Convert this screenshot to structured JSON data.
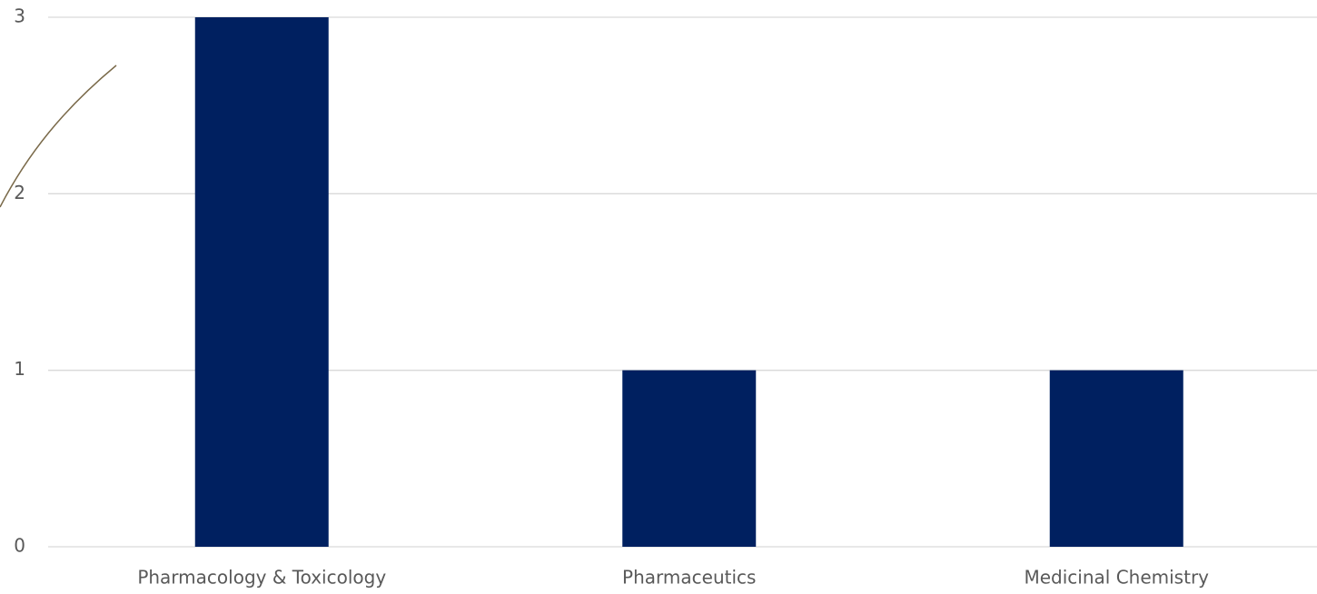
{
  "chart_data": {
    "type": "bar",
    "categories": [
      "Pharmacology & Toxicology",
      "Pharmaceutics",
      "Medicinal Chemistry"
    ],
    "values": [
      3,
      1,
      1
    ],
    "color": "#002060",
    "ylim": [
      0,
      3
    ],
    "yticks": [
      0,
      1,
      2,
      3
    ],
    "grid": true
  }
}
